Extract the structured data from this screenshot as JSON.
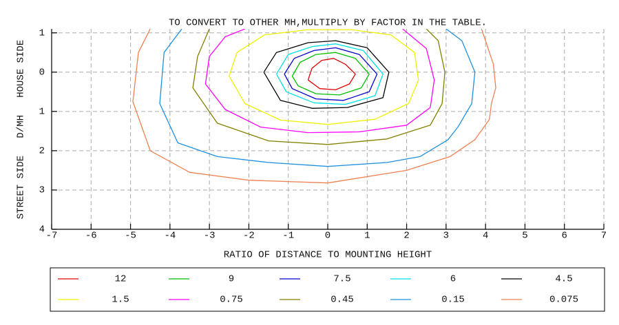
{
  "chart_data": {
    "type": "contour",
    "title": "TO CONVERT TO OTHER MH,MULTIPLY BY FACTOR IN THE TABLE.",
    "xlabel": "RATIO OF DISTANCE TO MOUNTING HEIGHT",
    "ylabel": "STREET SIDE   D/MH   HOUSE SIDE",
    "xlim": [
      -7,
      7
    ],
    "ylim": [
      -1.1,
      4
    ],
    "y_inverted": true,
    "xticks": [
      -7,
      -6,
      -5,
      -4,
      -3,
      -2,
      -1,
      0,
      1,
      2,
      3,
      4,
      5,
      6,
      7
    ],
    "yticks": [
      {
        "value": -1,
        "label": "1"
      },
      0,
      1,
      2,
      3,
      4
    ],
    "grid": true,
    "legend": "bottom",
    "series": [
      {
        "name": "12",
        "color": "#e00000",
        "x": [
          -0.5,
          -0.4,
          -0.15,
          0.15,
          0.45,
          0.7,
          0.55,
          0.2,
          -0.2,
          -0.5
        ],
        "y": [
          0.2,
          -0.1,
          -0.3,
          -0.35,
          -0.2,
          0.05,
          0.3,
          0.45,
          0.42,
          0.2
        ]
      },
      {
        "name": "9",
        "color": "#00c000",
        "x": [
          -0.9,
          -0.7,
          -0.3,
          0.2,
          0.7,
          1.05,
          0.85,
          0.3,
          -0.3,
          -0.75,
          -0.9
        ],
        "y": [
          0.1,
          -0.25,
          -0.45,
          -0.5,
          -0.35,
          0.05,
          0.4,
          0.58,
          0.55,
          0.35,
          0.1
        ]
      },
      {
        "name": "7.5",
        "color": "#0000c8",
        "x": [
          -1.1,
          -0.85,
          -0.35,
          0.2,
          0.8,
          1.25,
          1.05,
          0.4,
          -0.3,
          -0.9,
          -1.1
        ],
        "y": [
          0.05,
          -0.35,
          -0.55,
          -0.62,
          -0.45,
          0.05,
          0.5,
          0.72,
          0.68,
          0.42,
          0.05
        ]
      },
      {
        "name": "6",
        "color": "#00e0e8",
        "x": [
          -1.3,
          -1,
          -0.4,
          0.2,
          0.9,
          1.4,
          1.2,
          0.45,
          -0.35,
          -1.05,
          -1.3
        ],
        "y": [
          0.05,
          -0.45,
          -0.65,
          -0.72,
          -0.55,
          0.05,
          0.6,
          0.82,
          0.78,
          0.5,
          0.05
        ]
      },
      {
        "name": "4.5",
        "color": "#000000",
        "x": [
          -1.62,
          -1.3,
          -0.5,
          0.2,
          1.0,
          1.55,
          1.4,
          0.5,
          -0.4,
          -1.2,
          -1.62
        ],
        "y": [
          0,
          -0.5,
          -0.75,
          -0.8,
          -0.62,
          0,
          0.65,
          0.9,
          0.92,
          0.72,
          0
        ]
      },
      {
        "name": "1.5",
        "color": "#f0f000",
        "x": [
          -2.5,
          -2.3,
          -1.6,
          -0.5,
          0.6,
          1.6,
          2.2,
          2.3,
          2.05,
          1.2,
          0,
          -1.2,
          -2.1,
          -2.5
        ],
        "y": [
          0.1,
          -0.5,
          -0.95,
          -1.08,
          -1.08,
          -0.95,
          -0.5,
          0.2,
          0.8,
          1.2,
          1.33,
          1.22,
          0.8,
          0.1
        ]
      },
      {
        "name": "0.75",
        "color": "#ff00ff",
        "x": [
          -2.1,
          -2.6,
          -3.0,
          -3.1,
          -2.6,
          -1.7,
          -0.5,
          0.8,
          2.0,
          2.6,
          2.7,
          2.5,
          1.9
        ],
        "y": [
          -1.1,
          -0.9,
          -0.4,
          0.3,
          0.95,
          1.4,
          1.54,
          1.52,
          1.35,
          0.9,
          0.2,
          -0.6,
          -1.1
        ]
      },
      {
        "name": "0.45",
        "color": "#808000",
        "x": [
          -3.0,
          -3.3,
          -3.42,
          -2.8,
          -1.5,
          0,
          1.5,
          2.6,
          2.9,
          2.97,
          2.8,
          2.5
        ],
        "y": [
          -1.1,
          -0.4,
          0.4,
          1.3,
          1.75,
          1.84,
          1.7,
          1.35,
          0.8,
          0,
          -0.8,
          -1.1
        ]
      },
      {
        "name": "0.15",
        "color": "#1e90e0",
        "x": [
          -3.7,
          -4.15,
          -4.26,
          -3.8,
          -2.8,
          -1.5,
          0,
          1.5,
          2.34,
          3.05,
          3.3,
          3.65,
          3.73,
          3.4,
          3.0
        ],
        "y": [
          -1.1,
          -0.5,
          0.8,
          1.8,
          2.15,
          2.3,
          2.4,
          2.3,
          2.15,
          1.72,
          1.4,
          0.8,
          0,
          -0.8,
          -1.1
        ]
      },
      {
        "name": "0.075",
        "color": "#f08050",
        "x": [
          -4.5,
          -4.8,
          -4.94,
          -4.5,
          -3.5,
          -2.0,
          0,
          2.0,
          3.1,
          3.73,
          4.1,
          4.15,
          4.26,
          4.2,
          3.9
        ],
        "y": [
          -1.1,
          -0.5,
          0.75,
          2.0,
          2.55,
          2.75,
          2.82,
          2.5,
          2.15,
          1.72,
          1.2,
          0.8,
          0.4,
          -0.2,
          -1.1
        ]
      }
    ]
  }
}
